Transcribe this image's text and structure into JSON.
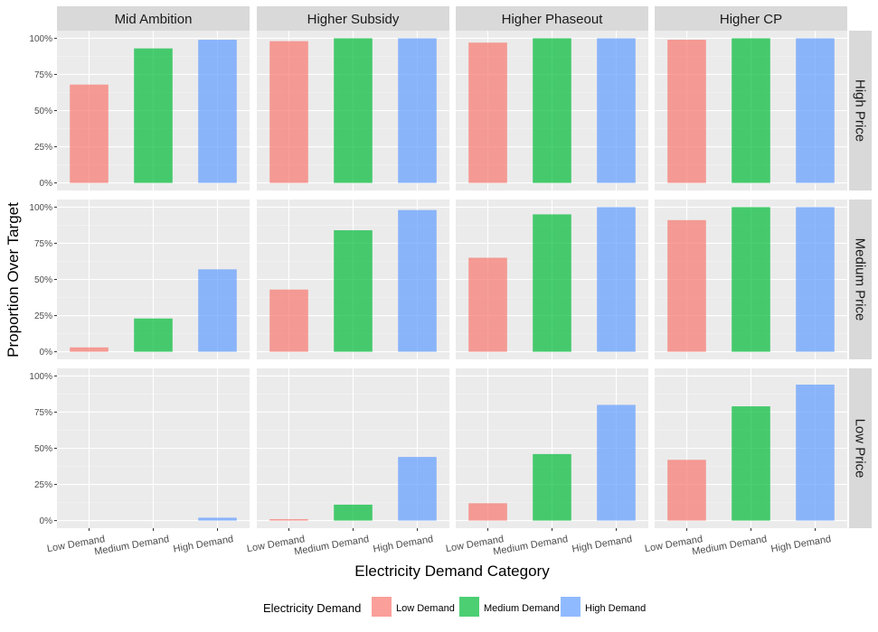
{
  "chart_data": {
    "type": "bar",
    "facet_columns": [
      "Mid Ambition",
      "Higher Subsidy",
      "Higher Phaseout",
      "Higher CP"
    ],
    "facet_rows": [
      "High Price",
      "Medium Price",
      "Low Price"
    ],
    "categories": [
      "Low Demand",
      "Medium Demand",
      "High Demand"
    ],
    "y_ticks": [
      "0%",
      "25%",
      "50%",
      "75%",
      "100%"
    ],
    "ylim": [
      0,
      1
    ],
    "xlabel": "Electricity Demand Category",
    "ylabel": "Proportion Over Target",
    "grid": true,
    "legend": {
      "title": "Electricity Demand",
      "position": "bottom",
      "entries": [
        "Low Demand",
        "Medium Demand",
        "High Demand"
      ]
    },
    "colors": {
      "Low Demand": "#F8766D",
      "Medium Demand": "#00BA38",
      "High Demand": "#619CFF"
    },
    "panels": [
      {
        "row": "High Price",
        "column": "Mid Ambition",
        "values": [
          0.68,
          0.93,
          0.99
        ]
      },
      {
        "row": "High Price",
        "column": "Higher Subsidy",
        "values": [
          0.98,
          1.0,
          1.0
        ]
      },
      {
        "row": "High Price",
        "column": "Higher Phaseout",
        "values": [
          0.97,
          1.0,
          1.0
        ]
      },
      {
        "row": "High Price",
        "column": "Higher CP",
        "values": [
          0.99,
          1.0,
          1.0
        ]
      },
      {
        "row": "Medium Price",
        "column": "Mid Ambition",
        "values": [
          0.03,
          0.23,
          0.57
        ]
      },
      {
        "row": "Medium Price",
        "column": "Higher Subsidy",
        "values": [
          0.43,
          0.84,
          0.98
        ]
      },
      {
        "row": "Medium Price",
        "column": "Higher Phaseout",
        "values": [
          0.65,
          0.95,
          1.0
        ]
      },
      {
        "row": "Medium Price",
        "column": "Higher CP",
        "values": [
          0.91,
          1.0,
          1.0
        ]
      },
      {
        "row": "Low Price",
        "column": "Mid Ambition",
        "values": [
          0.0,
          0.0,
          0.02
        ]
      },
      {
        "row": "Low Price",
        "column": "Higher Subsidy",
        "values": [
          0.01,
          0.11,
          0.44
        ]
      },
      {
        "row": "Low Price",
        "column": "Higher Phaseout",
        "values": [
          0.12,
          0.46,
          0.8
        ]
      },
      {
        "row": "Low Price",
        "column": "Higher CP",
        "values": [
          0.42,
          0.79,
          0.94
        ]
      }
    ]
  }
}
